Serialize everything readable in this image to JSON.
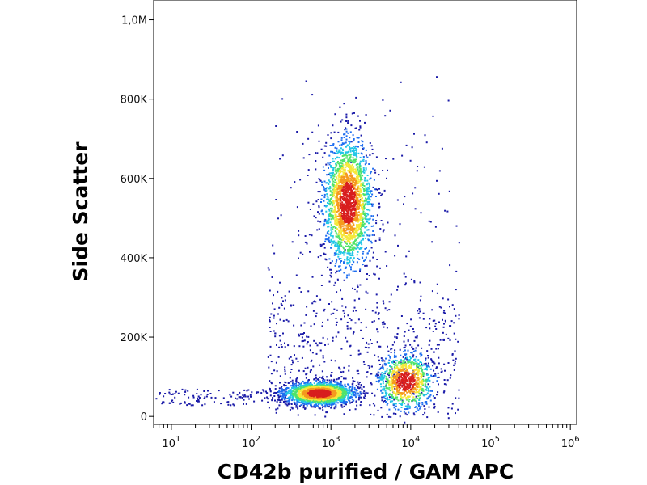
{
  "chart_data": {
    "type": "scatter",
    "subtype": "flow-cytometry-density-dot-plot",
    "xlabel": "CD42b purified / GAM APC",
    "ylabel": "Side Scatter",
    "x_scale": "log",
    "xlim": [
      6,
      1200000
    ],
    "ylim": [
      -20000,
      1050000
    ],
    "x_ticks": [
      {
        "value": 10,
        "base": "10",
        "exp": "1"
      },
      {
        "value": 100,
        "base": "10",
        "exp": "2"
      },
      {
        "value": 1000,
        "base": "10",
        "exp": "3"
      },
      {
        "value": 10000,
        "base": "10",
        "exp": "4"
      },
      {
        "value": 100000,
        "base": "10",
        "exp": "5"
      },
      {
        "value": 1000000,
        "base": "10",
        "exp": "6"
      }
    ],
    "y_ticks": [
      {
        "value": 0,
        "label": "0"
      },
      {
        "value": 200000,
        "label": "200K"
      },
      {
        "value": 400000,
        "label": "400K"
      },
      {
        "value": 600000,
        "label": "600K"
      },
      {
        "value": 800000,
        "label": "800K"
      },
      {
        "value": 1000000,
        "label": "1,0M"
      }
    ],
    "populations": [
      {
        "x_center": 1600,
        "y_center": 540000,
        "x_spread_log": 0.15,
        "y_spread": 80000,
        "events": 2200
      },
      {
        "x_center": 700,
        "y_center": 60000,
        "x_spread_log": 0.22,
        "y_spread": 14000,
        "events": 2000
      },
      {
        "x_center": 8500,
        "y_center": 90000,
        "x_spread_log": 0.17,
        "y_spread": 35000,
        "events": 900
      }
    ],
    "color_scale": [
      "#1a1aa8",
      "#1e6ef0",
      "#22c6e6",
      "#4fe36a",
      "#f5e83a",
      "#f59a1e",
      "#d81e1e"
    ],
    "grid": false
  }
}
